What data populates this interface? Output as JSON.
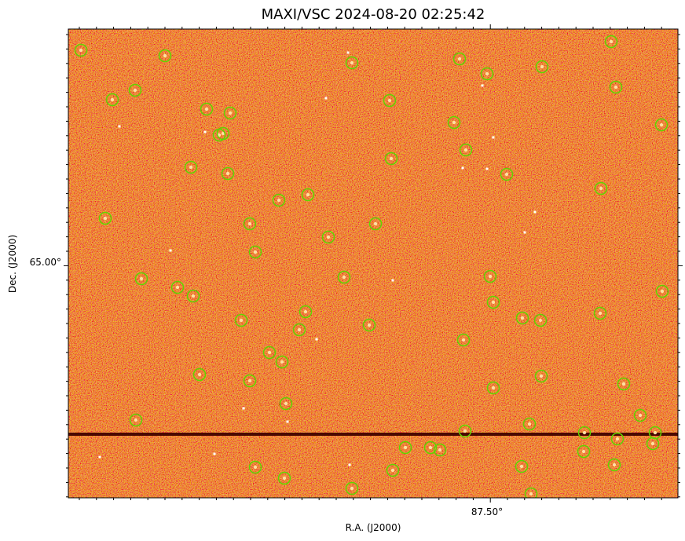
{
  "title": "MAXI/VSC 2024-08-20 02:25:42",
  "x_axis": {
    "label": "R.A. (J2000)",
    "ticks": [
      "87.50°"
    ]
  },
  "y_axis": {
    "label": "Dec. (J2000)",
    "ticks": [
      "65.00°"
    ]
  }
}
